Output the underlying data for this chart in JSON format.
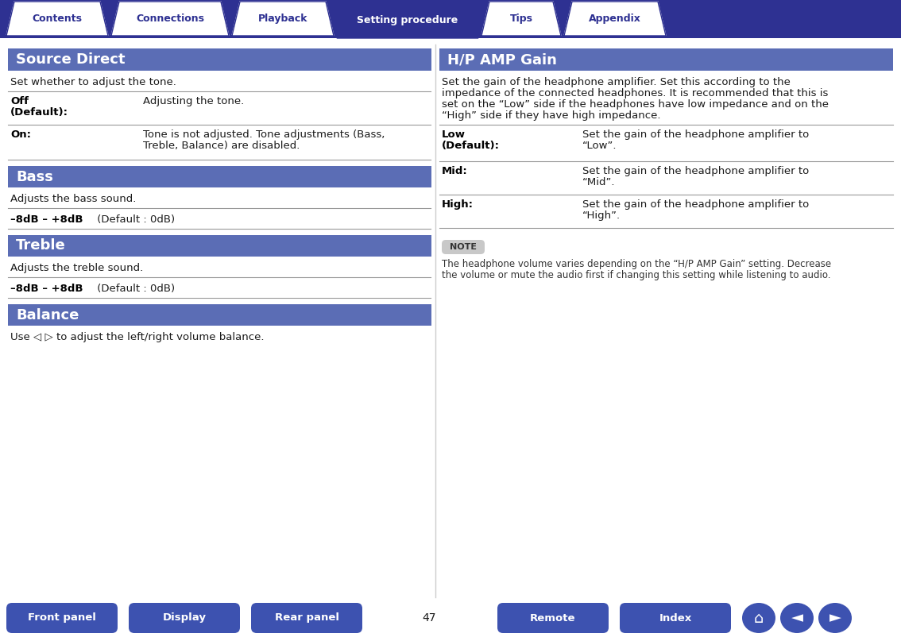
{
  "bg_color": "#ffffff",
  "nav_bar_color": "#2e3192",
  "header_color": "#5b6db5",
  "tab_labels": [
    "Contents",
    "Connections",
    "Playback",
    "Setting procedure",
    "Tips",
    "Appendix"
  ],
  "active_tab": 3,
  "bottom_buttons": [
    "Front panel",
    "Display",
    "Rear panel",
    "Remote",
    "Index"
  ],
  "page_number": "47",
  "left_title": "Source Direct",
  "right_title": "H/P AMP Gain",
  "left_desc": "Set whether to adjust the tone.",
  "right_desc_lines": [
    "Set the gain of the headphone amplifier. Set this according to the",
    "impedance of the connected headphones. It is recommended that this is",
    "set on the “Low” side if the headphones have low impedance and on the",
    "“High” side if they have high impedance."
  ],
  "note_label": "NOTE",
  "note_text_lines": [
    "The headphone volume varies depending on the “H/P AMP Gain” setting. Decrease",
    "the volume or mute the audio first if changing this setting while listening to audio."
  ],
  "tab_color_inactive": "#ffffff",
  "tab_text_inactive": "#2e3192",
  "tab_text_active": "#ffffff",
  "text_color": "#1a1a1a",
  "bold_color": "#000000",
  "header_text_color": "#ffffff",
  "note_bg": "#c8c8c8",
  "note_text_color": "#333333",
  "bottom_btn_color": "#3d52b0",
  "bottom_btn_text": "#ffffff",
  "icon_btn_color": "#3d52b0",
  "divider_color": "#888888",
  "line_color": "#999999"
}
